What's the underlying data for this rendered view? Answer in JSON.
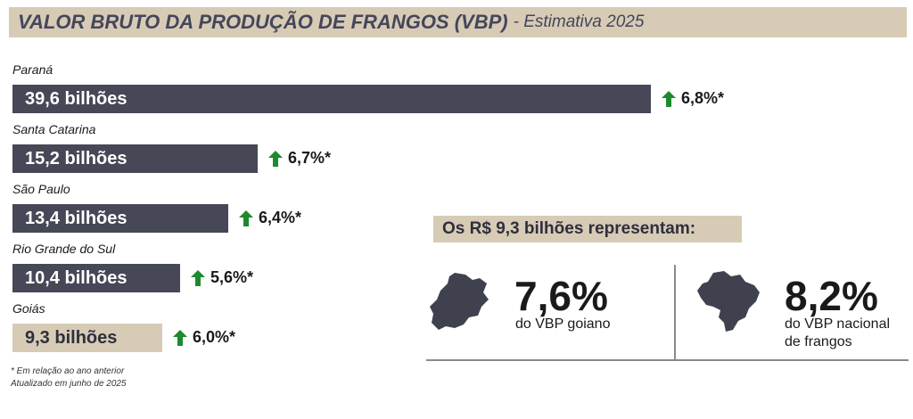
{
  "header": {
    "title": "VALOR BRUTO DA PRODUÇÃO DE FRANGOS (VBP)",
    "subtitle": "- Estimativa 2025"
  },
  "chart_data": {
    "type": "bar",
    "orientation": "horizontal",
    "unit": "bilhões",
    "categories": [
      "Paraná",
      "Santa Catarina",
      "São Paulo",
      "Rio Grande do Sul",
      "Goiás"
    ],
    "values": [
      39.6,
      15.2,
      13.4,
      10.4,
      9.3
    ],
    "value_labels": [
      "39,6 bilhões",
      "15,2 bilhões",
      "13,4 bilhões",
      "10,4 bilhões",
      "9,3 bilhões"
    ],
    "growth_labels": [
      "6,8%*",
      "6,7%*",
      "6,4%*",
      "5,6%*",
      "6,0%*"
    ],
    "highlighted_index": 4,
    "colors": {
      "bar": "#464857",
      "highlight": "#d7cbb6",
      "arrow": "#1e8a2e"
    }
  },
  "footnotes": [
    "* Em relação ao ano anterior",
    "Atualizado em junho de 2025"
  ],
  "panel": {
    "header": "Os R$ 9,3 bilhões representam:",
    "left": {
      "icon": "goias-map-icon",
      "pct": "7,6%",
      "desc": [
        "do VBP goiano"
      ]
    },
    "right": {
      "icon": "brazil-map-icon",
      "pct": "8,2%",
      "desc": [
        "do VBP nacional",
        "de frangos"
      ]
    }
  }
}
